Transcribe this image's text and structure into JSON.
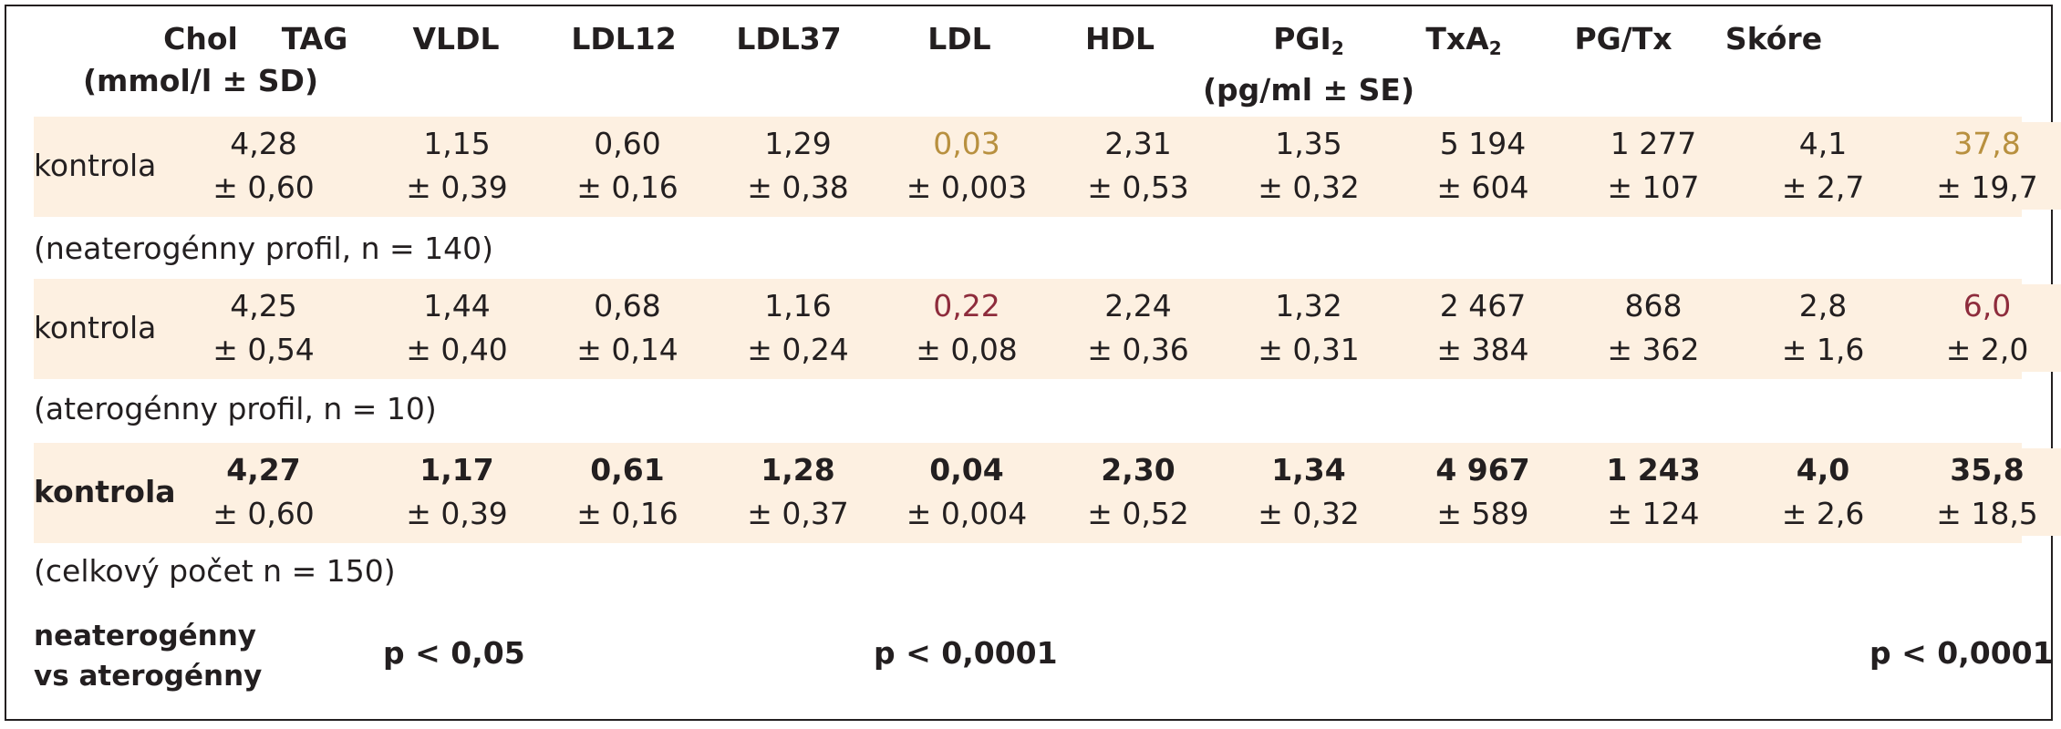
{
  "headers": [
    {
      "main": "Chol",
      "sub": "",
      "unit": "(mmol/l ± SD)"
    },
    {
      "main": "TAG",
      "sub": "",
      "unit": ""
    },
    {
      "main": "VLDL",
      "sub": "",
      "unit": ""
    },
    {
      "main": "LDL12",
      "sub": "",
      "unit": ""
    },
    {
      "main": "LDL37",
      "sub": "",
      "unit": ""
    },
    {
      "main": "LDL",
      "sub": "",
      "unit": ""
    },
    {
      "main": "HDL",
      "sub": "",
      "unit": ""
    },
    {
      "main": "PGI",
      "sub": "2",
      "unit": "(pg/ml ± SE)"
    },
    {
      "main": "TxA",
      "sub": "2",
      "unit": ""
    },
    {
      "main": "PG/Tx",
      "sub": "",
      "unit": ""
    },
    {
      "main": "Skóre",
      "sub": "",
      "unit": ""
    }
  ],
  "groups": [
    {
      "label": "kontrola",
      "note": "(neaterogénny profil, n = 140)",
      "cells": [
        {
          "v": "4,28",
          "e": "± 0,60"
        },
        {
          "v": "1,15",
          "e": "± 0,39"
        },
        {
          "v": "0,60",
          "e": "± 0,16"
        },
        {
          "v": "1,29",
          "e": "± 0,38"
        },
        {
          "v": "0,03",
          "e": "± 0,003",
          "hl": "gold"
        },
        {
          "v": "2,31",
          "e": "± 0,53"
        },
        {
          "v": "1,35",
          "e": "± 0,32"
        },
        {
          "v": "5 194",
          "e": "± 604"
        },
        {
          "v": "1 277",
          "e": "± 107"
        },
        {
          "v": "4,1",
          "e": "± 2,7"
        },
        {
          "v": "37,8",
          "e": "± 19,7",
          "hl": "gold"
        }
      ]
    },
    {
      "label": "kontrola",
      "note": "(aterogénny profil, n = 10)",
      "cells": [
        {
          "v": "4,25",
          "e": "± 0,54"
        },
        {
          "v": "1,44",
          "e": "± 0,40"
        },
        {
          "v": "0,68",
          "e": "± 0,14"
        },
        {
          "v": "1,16",
          "e": "± 0,24"
        },
        {
          "v": "0,22",
          "e": "± 0,08",
          "hl": "red"
        },
        {
          "v": "2,24",
          "e": "± 0,36"
        },
        {
          "v": "1,32",
          "e": "± 0,31"
        },
        {
          "v": "2 467",
          "e": "± 384"
        },
        {
          "v": "868",
          "e": "± 362"
        },
        {
          "v": "2,8",
          "e": "± 1,6"
        },
        {
          "v": "6,0",
          "e": "± 2,0",
          "hl": "red"
        }
      ]
    },
    {
      "label": "kontrola",
      "note": "(celkový počet n = 150)",
      "bold": true,
      "cells": [
        {
          "v": "4,27",
          "e": "± 0,60"
        },
        {
          "v": "1,17",
          "e": "± 0,39"
        },
        {
          "v": "0,61",
          "e": "± 0,16"
        },
        {
          "v": "1,28",
          "e": "± 0,37"
        },
        {
          "v": "0,04",
          "e": "± 0,004"
        },
        {
          "v": "2,30",
          "e": "± 0,52"
        },
        {
          "v": "1,34",
          "e": "± 0,32"
        },
        {
          "v": "4 967",
          "e": "± 589"
        },
        {
          "v": "1 243",
          "e": "± 124"
        },
        {
          "v": "4,0",
          "e": "± 2,6"
        },
        {
          "v": "35,8",
          "e": "± 18,5"
        }
      ]
    }
  ],
  "comparison": {
    "line1": "neaterogénny",
    "line2": "vs aterogénny",
    "p_tag": "p < 0,05",
    "p_ldl37": "p < 0,0001",
    "p_score": "p < 0,0001"
  },
  "colors": {
    "band": "#fdf0e1",
    "gold": "#b8903f",
    "red": "#8e2c3c"
  }
}
